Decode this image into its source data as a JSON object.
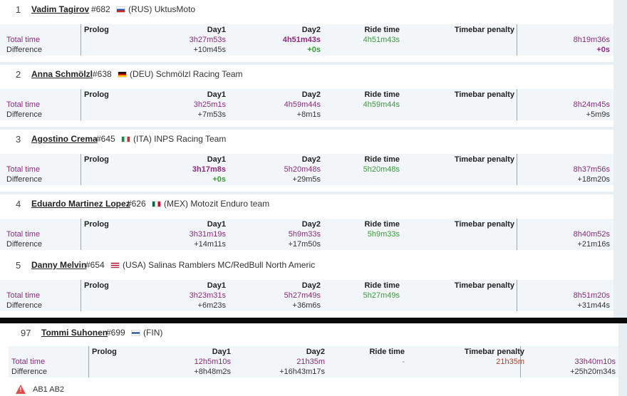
{
  "riders": [
    {
      "position": "1",
      "name": "Vadim Tagirov",
      "number": "#682",
      "country": "(RUS)",
      "team": "UktusMoto",
      "flag": [
        "#ffffff",
        "#1f4fb5",
        "#d52b1e"
      ],
      "headers": {
        "prolog": "Prolog",
        "day1": "Day1",
        "day2": "Day2",
        "ride_time": "Ride time",
        "timebar_penalty": "Timebar penalty"
      },
      "labels": {
        "total": "Total time",
        "diff": "Difference"
      },
      "day1_total": "3h27m53s",
      "day1_diff": "+10m45s",
      "day2_total": "4h51m43s",
      "day2_diff": "+0s",
      "ride_time": "4h51m43s",
      "total": "8h19m36s",
      "total_diff": "+0s"
    },
    {
      "position": "2",
      "name": "Anna Schmölzl",
      "number": "#638",
      "country": "(DEU)",
      "team": "Schmölzl Racing Team",
      "flag": [
        "#111111",
        "#dd0000",
        "#ffce00"
      ],
      "headers": {
        "prolog": "Prolog",
        "day1": "Day1",
        "day2": "Day2",
        "ride_time": "Ride time",
        "timebar_penalty": "Timebar penalty"
      },
      "labels": {
        "total": "Total time",
        "diff": "Difference"
      },
      "day1_total": "3h25m1s",
      "day1_diff": "+7m53s",
      "day2_total": "4h59m44s",
      "day2_diff": "+8m1s",
      "ride_time": "4h59m44s",
      "total": "8h24m45s",
      "total_diff": "+5m9s"
    },
    {
      "position": "3",
      "name": "Agostino Crema",
      "number": "#645",
      "country": "(ITA)",
      "team": "INPS Racing Team",
      "flag": [
        "#009246",
        "#ffffff",
        "#ce2b37"
      ],
      "headers": {
        "prolog": "Prolog",
        "day1": "Day1",
        "day2": "Day2",
        "ride_time": "Ride time",
        "timebar_penalty": "Timebar penalty"
      },
      "labels": {
        "total": "Total time",
        "diff": "Difference"
      },
      "day1_total": "3h17m8s",
      "day1_diff": "+0s",
      "day2_total": "5h20m48s",
      "day2_diff": "+29m5s",
      "ride_time": "5h20m48s",
      "total": "8h37m56s",
      "total_diff": "+18m20s"
    },
    {
      "position": "4",
      "name": "Eduardo Martinez Lopez",
      "number": "#626",
      "country": "(MEX)",
      "team": "Motozit Enduro team",
      "flag": [
        "#006847",
        "#ffffff",
        "#ce1126"
      ],
      "headers": {
        "prolog": "Prolog",
        "day1": "Day1",
        "day2": "Day2",
        "ride_time": "Ride time",
        "timebar_penalty": "Timebar penalty"
      },
      "labels": {
        "total": "Total time",
        "diff": "Difference"
      },
      "day1_total": "3h31m19s",
      "day1_diff": "+14m11s",
      "day2_total": "5h9m33s",
      "day2_diff": "+17m50s",
      "ride_time": "5h9m33s",
      "total": "8h40m52s",
      "total_diff": "+21m16s"
    },
    {
      "position": "5",
      "name": "Danny Melvin",
      "number": "#654",
      "country": "(USA)",
      "team": "Salinas Ramblers MC/RedBull North Americ",
      "flag": [
        "#b22234",
        "#ffffff",
        "#3c3b6e"
      ],
      "headers": {
        "prolog": "Prolog",
        "day1": "Day1",
        "day2": "Day2",
        "ride_time": "Ride time",
        "timebar_penalty": "Timebar penalty"
      },
      "labels": {
        "total": "Total time",
        "diff": "Difference"
      },
      "day1_total": "3h23m31s",
      "day1_diff": "+6m23s",
      "day2_total": "5h27m49s",
      "day2_diff": "+36m6s",
      "ride_time": "5h27m49s",
      "total": "8h51m20s",
      "total_diff": "+31m44s"
    }
  ],
  "bottom_rider": {
    "position": "97",
    "name": "Tommi Suhonen",
    "number": "#699",
    "country": "(FIN)",
    "flag": [
      "#ffffff",
      "#003580",
      "#ffffff"
    ],
    "headers": {
      "prolog": "Prolog",
      "day1": "Day1",
      "day2": "Day2",
      "ride_time": "Ride time",
      "timebar_penalty": "Timebar penalty"
    },
    "labels": {
      "total": "Total time",
      "diff": "Difference"
    },
    "day1_total": "12h5m10s",
    "day1_diff": "+8h48m2s",
    "day2_total": "21h35m",
    "day2_diff": "+16h43m17s",
    "ride_time": "-",
    "penalty": "21h35m",
    "total": "33h40m10s",
    "total_diff": "+25h20m34s",
    "warning_icon": "warning-triangle-icon",
    "warning_text": "AB1 AB2"
  },
  "colors": {
    "purple": "#8b2a82",
    "green": "#3c9a3c",
    "red": "#c0392b"
  }
}
